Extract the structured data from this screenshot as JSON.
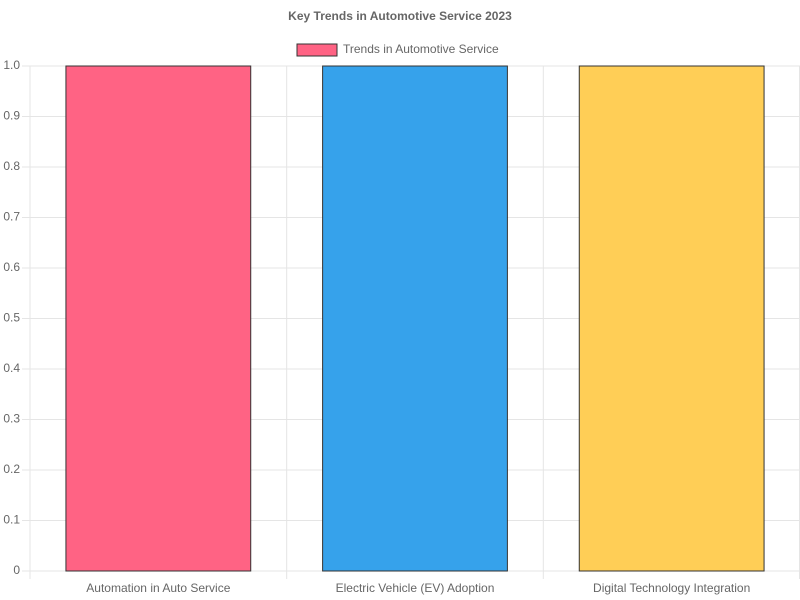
{
  "chart_data": {
    "type": "bar",
    "title": "Key Trends in Automotive Service 2023",
    "categories": [
      "Automation in Auto Service",
      "Electric Vehicle (EV) Adoption",
      "Digital Technology Integration"
    ],
    "series": [
      {
        "name": "Trends in Automotive Service",
        "colors": [
          "#ff6384",
          "#36a2eb",
          "#ffce56"
        ],
        "border_color": "#333333",
        "values": [
          1,
          1,
          1
        ]
      }
    ],
    "ylim": [
      0,
      1
    ],
    "yticks": [
      0,
      0.1,
      0.2,
      0.3,
      0.4,
      0.5,
      0.6,
      0.7,
      0.8,
      0.9,
      {
        "value": 1,
        "label": "1.0"
      }
    ],
    "grid": true,
    "legend": "top"
  }
}
